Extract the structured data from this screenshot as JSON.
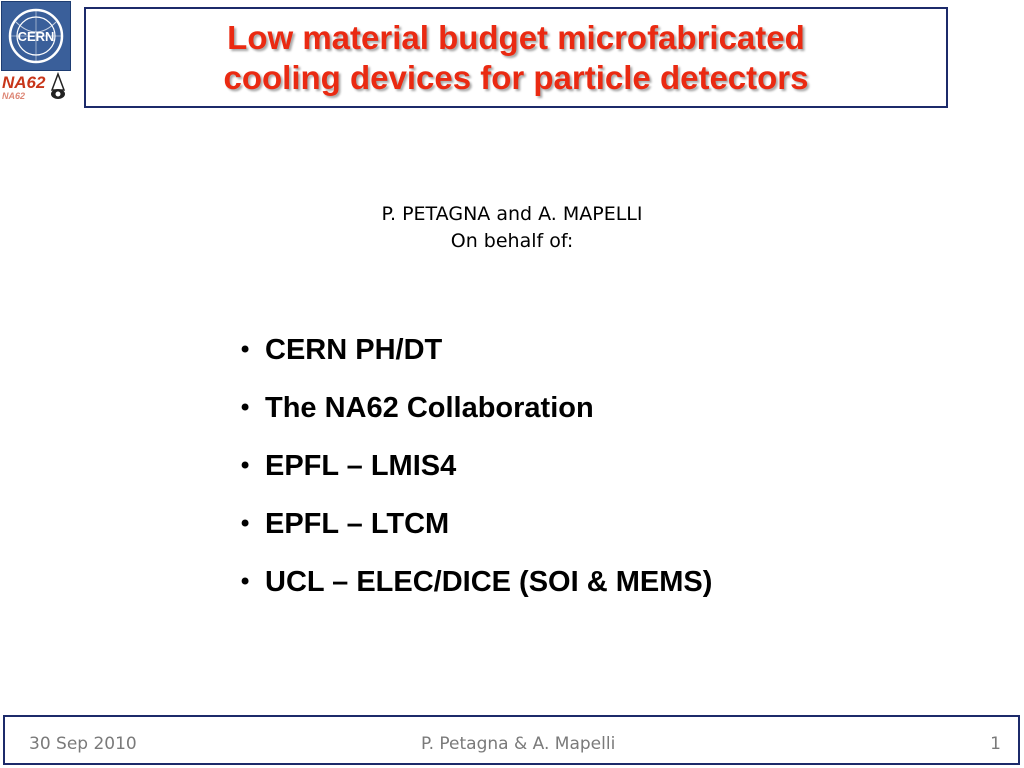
{
  "logos": {
    "cern": {
      "text": "CERN",
      "icon": "cern-logo-icon",
      "color": "#3a5f9a"
    },
    "na62": {
      "text": "NA62",
      "icon": "na62-logo-icon",
      "color": "#c8361a"
    }
  },
  "title": {
    "line1": "Low material budget microfabricated",
    "line2": "cooling devices for particle detectors",
    "color": "#ea2a12"
  },
  "authors": {
    "names": "P. PETAGNA and A. MAPELLI",
    "behalf": "On behalf of:"
  },
  "institutions": {
    "bullet": "•",
    "items": [
      "CERN PH/DT",
      "The NA62 Collaboration",
      "EPFL – LMIS4",
      "EPFL – LTCM",
      "UCL – ELEC/DICE (SOI & MEMS)"
    ]
  },
  "footer": {
    "date": "30 Sep 2010",
    "authors": "P. Petagna & A. Mapelli",
    "page": "1",
    "border_color": "#1c2a6a"
  }
}
